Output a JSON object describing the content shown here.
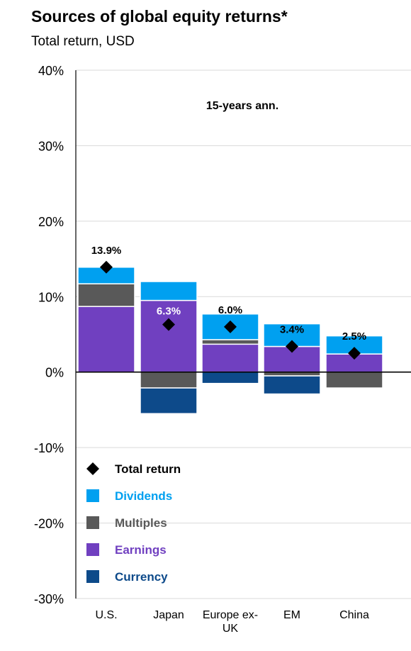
{
  "chart_data": {
    "type": "bar",
    "stacked": true,
    "title": "Sources of global equity returns*",
    "subtitle": "Total return, USD",
    "annotation": "15-years ann.",
    "categories": [
      "U.S.",
      "Japan",
      "Europe ex-UK",
      "EM",
      "China"
    ],
    "category_labels": [
      [
        "U.S."
      ],
      [
        "Japan"
      ],
      [
        "Europe ex-",
        "UK"
      ],
      [
        "EM"
      ],
      [
        "China"
      ]
    ],
    "ylim": [
      -30,
      40
    ],
    "yticks": [
      40,
      30,
      20,
      10,
      0,
      -10,
      -20,
      -30
    ],
    "ytick_labels": [
      "40%",
      "30%",
      "20%",
      "10%",
      "0%",
      "-10%",
      "-20%",
      "-30%"
    ],
    "grid": true,
    "legend_position": "bottom-left",
    "series": [
      {
        "name": "Earnings",
        "color": "#7040c0",
        "values": [
          8.7,
          9.5,
          3.7,
          3.4,
          2.4
        ]
      },
      {
        "name": "Multiples",
        "color": "#595959",
        "values": [
          3.0,
          -2.1,
          0.6,
          -0.5,
          -2.1
        ]
      },
      {
        "name": "Dividends",
        "color": "#00a0f0",
        "values": [
          2.2,
          2.5,
          3.4,
          3.0,
          2.4
        ]
      },
      {
        "name": "Currency",
        "color": "#0d4a8a",
        "values": [
          0.0,
          -3.4,
          -1.5,
          -2.4,
          0.0
        ]
      }
    ],
    "total_return": {
      "name": "Total return",
      "color": "#000000",
      "values": [
        13.9,
        6.3,
        6.0,
        3.4,
        2.5
      ],
      "labels": [
        "13.9%",
        "6.3%",
        "6.0%",
        "3.4%",
        "2.5%"
      ]
    },
    "legend": [
      {
        "name": "Total return",
        "color": "#000000",
        "marker": "diamond"
      },
      {
        "name": "Dividends",
        "color": "#00a0f0",
        "marker": "square"
      },
      {
        "name": "Multiples",
        "color": "#595959",
        "marker": "square"
      },
      {
        "name": "Earnings",
        "color": "#7040c0",
        "marker": "square"
      },
      {
        "name": "Currency",
        "color": "#0d4a8a",
        "marker": "square"
      }
    ]
  }
}
